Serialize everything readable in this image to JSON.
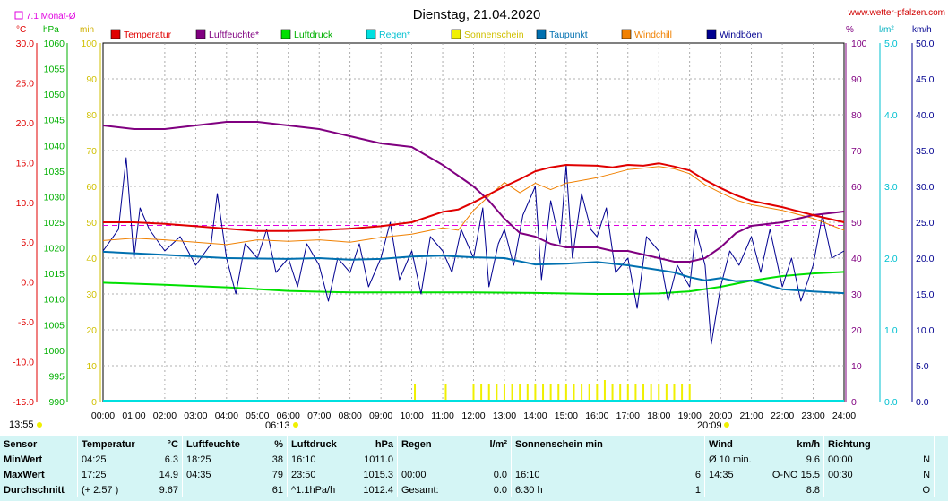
{
  "header": {
    "title": "Dienstag, 21.04.2020",
    "site": "www.wetter-pfalzen.com",
    "avg_label": "7.1 Monat-Ø",
    "unit_left_temp": "°C",
    "unit_left_press": "hPa",
    "unit_left_min": "min",
    "unit_right_pct": "%",
    "unit_right_rain": "l/m²",
    "unit_right_wind": "km/h",
    "sunrise": "06:13",
    "sunset": "20:09",
    "corner_time": "13:55"
  },
  "colors": {
    "temperatur": "#e00000",
    "luftfeuchte": "#800080",
    "luftdruck": "#00e000",
    "regen": "#00e0e0",
    "sonnenschein": "#f0f000",
    "taupunkt": "#0070b0",
    "windchill": "#f08000",
    "windboeen": "#000090",
    "avg_line": "#e000e0"
  },
  "chart_data": {
    "type": "line",
    "title": "Dienstag, 21.04.2020",
    "x_ticks": [
      "00:00",
      "01:00",
      "02:00",
      "03:00",
      "04:00",
      "05:00",
      "06:00",
      "07:00",
      "08:00",
      "09:00",
      "10:00",
      "11:00",
      "12:00",
      "13:00",
      "14:00",
      "15:00",
      "16:00",
      "17:00",
      "18:00",
      "19:00",
      "20:00",
      "21:00",
      "22:00",
      "23:00",
      "24:00"
    ],
    "axes": {
      "temp": {
        "unit": "°C",
        "ylim": [
          -15,
          30
        ],
        "ticks": [
          "30.0",
          "25.0",
          "20.0",
          "15.0",
          "10.0",
          "5.0",
          "0.0",
          "-5.0",
          "-10.0",
          "-15.0"
        ]
      },
      "pressure": {
        "unit": "hPa",
        "ylim": [
          990,
          1060
        ],
        "ticks": [
          "1060",
          "1055",
          "1050",
          "1045",
          "1040",
          "1035",
          "1030",
          "1025",
          "1020",
          "1015",
          "1010",
          "1005",
          "1000",
          "995",
          "990"
        ]
      },
      "sunshine": {
        "unit": "min",
        "ylim": [
          0,
          100
        ],
        "ticks": [
          "100",
          "90",
          "80",
          "70",
          "60",
          "50",
          "40",
          "30",
          "20",
          "10",
          "0"
        ]
      },
      "humidity": {
        "unit": "%",
        "ylim": [
          0,
          100
        ],
        "ticks": [
          "100",
          "90",
          "80",
          "70",
          "60",
          "50",
          "40",
          "30",
          "20",
          "10",
          "0"
        ]
      },
      "rain": {
        "unit": "l/m²",
        "ylim": [
          0,
          5
        ],
        "ticks": [
          "5.0",
          "4.0",
          "3.0",
          "2.0",
          "1.0",
          "0.0"
        ]
      },
      "wind": {
        "unit": "km/h",
        "ylim": [
          0,
          50
        ],
        "ticks": [
          "50.0",
          "45.0",
          "40.0",
          "35.0",
          "30.0",
          "25.0",
          "20.0",
          "15.0",
          "10.0",
          "5.0",
          "0.0"
        ]
      }
    },
    "monthly_avg_temp": 7.1,
    "legend": [
      "Temperatur",
      "Luftfeuchte*",
      "Luftdruck",
      "Regen*",
      "Sonnenschein",
      "Taupunkt",
      "Windchill",
      "Windböen"
    ],
    "series": [
      {
        "name": "Temperatur",
        "axis": "temp",
        "x": [
          0,
          1,
          2,
          3,
          4,
          5,
          6,
          7,
          8,
          9,
          10,
          11,
          11.5,
          12,
          12.5,
          13,
          13.5,
          14,
          14.5,
          15,
          16,
          16.5,
          17,
          17.5,
          18,
          18.5,
          19,
          19.5,
          20,
          20.5,
          21,
          22,
          23,
          24
        ],
        "values": [
          7.5,
          7.5,
          7.3,
          7.0,
          6.7,
          6.4,
          6.4,
          6.5,
          6.7,
          7.0,
          7.5,
          8.8,
          9.1,
          10.0,
          11.0,
          12.0,
          12.9,
          13.9,
          14.4,
          14.7,
          14.6,
          14.4,
          14.7,
          14.6,
          14.9,
          14.5,
          14.0,
          12.8,
          11.8,
          10.9,
          10.2,
          9.4,
          8.4,
          7.5
        ]
      },
      {
        "name": "Luftfeuchte*",
        "axis": "humidity",
        "x": [
          0,
          1,
          2,
          3,
          4,
          5,
          6,
          7,
          8,
          9,
          10,
          11,
          11.5,
          12,
          12.5,
          13,
          13.5,
          14,
          14.5,
          15,
          16,
          16.5,
          17,
          17.5,
          18,
          18.5,
          19,
          19.5,
          20,
          20.5,
          21,
          22,
          23,
          24
        ],
        "values": [
          77,
          76,
          76,
          77,
          78,
          78,
          77,
          76,
          74,
          72,
          71,
          66,
          63,
          60,
          56,
          51,
          47,
          46,
          44,
          43,
          43,
          42,
          42,
          41,
          40,
          39,
          39,
          40,
          43,
          47,
          49,
          50,
          52,
          53
        ]
      },
      {
        "name": "Luftdruck",
        "axis": "pressure",
        "x": [
          0,
          2,
          4,
          6,
          8,
          10,
          12,
          14,
          16,
          17,
          18,
          19,
          20,
          21,
          22,
          23,
          24
        ],
        "values": [
          1013.2,
          1012.8,
          1012.3,
          1011.6,
          1011.3,
          1011.3,
          1011.3,
          1011.2,
          1011.0,
          1011.0,
          1011.1,
          1011.5,
          1012.4,
          1013.6,
          1014.5,
          1015.0,
          1015.3
        ]
      },
      {
        "name": "Taupunkt",
        "axis": "temp",
        "x": [
          0,
          2,
          4,
          6,
          7,
          8,
          9,
          10,
          11,
          12,
          13,
          14,
          15,
          16,
          17,
          18,
          18.5,
          19,
          19.5,
          20,
          20.5,
          21,
          22,
          23,
          24
        ],
        "values": [
          3.8,
          3.4,
          3.0,
          2.9,
          3.0,
          2.8,
          2.9,
          3.2,
          3.3,
          3.1,
          3.0,
          2.2,
          2.3,
          2.5,
          2.1,
          1.5,
          1.2,
          0.6,
          0.2,
          0.5,
          0.1,
          0.2,
          -0.9,
          -1.2,
          -1.4
        ]
      },
      {
        "name": "Windchill",
        "axis": "temp",
        "x": [
          0,
          1,
          2,
          3,
          4,
          5,
          6,
          7,
          8,
          9,
          10,
          11,
          11.5,
          12,
          12.5,
          13,
          13.5,
          14,
          14.5,
          15,
          16,
          16.5,
          17,
          17.5,
          18,
          18.5,
          19,
          19.5,
          20,
          20.5,
          21,
          22,
          23,
          24
        ],
        "values": [
          5.2,
          5.5,
          5.3,
          5.0,
          4.7,
          5.3,
          5.1,
          5.3,
          5.0,
          5.6,
          6.0,
          6.8,
          6.5,
          9.0,
          10.8,
          12.5,
          11.2,
          12.4,
          11.6,
          12.4,
          13.1,
          13.6,
          14.1,
          14.3,
          14.5,
          14.2,
          13.6,
          12.2,
          11.2,
          10.3,
          9.7,
          9.0,
          8.0,
          6.5
        ]
      },
      {
        "name": "Windböen",
        "axis": "wind",
        "x": [
          0,
          0.5,
          0.75,
          1,
          1.2,
          1.5,
          2,
          2.5,
          3,
          3.5,
          3.7,
          4,
          4.3,
          4.6,
          5,
          5.3,
          5.6,
          6,
          6.3,
          6.6,
          7,
          7.3,
          7.6,
          8,
          8.3,
          8.6,
          9,
          9.3,
          9.6,
          10,
          10.3,
          10.6,
          11,
          11.3,
          11.6,
          12,
          12.3,
          12.5,
          12.8,
          13,
          13.3,
          13.6,
          14,
          14.2,
          14.5,
          14.8,
          15,
          15.2,
          15.5,
          15.8,
          16,
          16.3,
          16.6,
          17,
          17.3,
          17.6,
          18,
          18.3,
          18.6,
          19,
          19.2,
          19.5,
          19.7,
          20,
          20.3,
          20.6,
          21,
          21.3,
          21.6,
          22,
          22.3,
          22.6,
          23,
          23.3,
          23.6,
          24
        ],
        "values": [
          21,
          24,
          34,
          20,
          27,
          24,
          21,
          23,
          19,
          22,
          29,
          20,
          15,
          22,
          20,
          24,
          18,
          20,
          16,
          22,
          19,
          14,
          20,
          18,
          22,
          16,
          20,
          25,
          17,
          21,
          15,
          23,
          21,
          18,
          24,
          20,
          27,
          16,
          22,
          24,
          19,
          26,
          30,
          17,
          28,
          22,
          33,
          20,
          29,
          24,
          23,
          27,
          18,
          20,
          13,
          23,
          21,
          14,
          19,
          16,
          24,
          19,
          8,
          16,
          21,
          19,
          23,
          18,
          24,
          16,
          20,
          14,
          19,
          26,
          20,
          21
        ]
      }
    ],
    "bars": [
      {
        "name": "Sonnenschein",
        "axis": "sunshine",
        "x": [
          10.1,
          11.1,
          12.0,
          12.25,
          12.5,
          12.75,
          13.0,
          13.25,
          13.5,
          13.75,
          14.0,
          14.25,
          14.5,
          14.75,
          15.0,
          15.25,
          15.5,
          15.75,
          16.0,
          16.25,
          16.5,
          16.75,
          17.0,
          17.25,
          17.5,
          17.75,
          18.0,
          18.25,
          18.5,
          18.75,
          19.0
        ],
        "values": [
          5,
          5,
          5,
          5,
          5,
          5,
          5,
          5,
          5,
          5,
          5,
          5,
          5,
          5,
          5,
          5,
          5,
          5,
          5,
          6,
          5,
          5,
          5,
          5,
          5,
          5,
          5,
          5,
          5,
          5,
          5
        ]
      },
      {
        "name": "Regen*",
        "axis": "rain",
        "x": [],
        "values": []
      }
    ]
  },
  "stats": {
    "headers": {
      "sensor": "Sensor",
      "temp": "Temperatur",
      "temp_u": "°C",
      "hum": "Luftfeuchte",
      "hum_u": "%",
      "press": "Luftdruck",
      "press_u": "hPa",
      "rain": "Regen",
      "rain_u": "l/m²",
      "sun": "Sonnenschein min",
      "wind": "Wind",
      "wind_u": "km/h",
      "dir": "Richtung"
    },
    "rows": [
      {
        "label": "MinWert",
        "t_time": "04:25",
        "t_val": "6.3",
        "h_time": "18:25",
        "h_val": "38",
        "p_time": "16:10",
        "p_val": "1011.0",
        "r_time": "",
        "r_val": "",
        "s_time": "",
        "s_val": "",
        "w_time": "Ø 10 min.",
        "w_val": "9.6",
        "d_time": "00:00",
        "d_val": "N"
      },
      {
        "label": "MaxWert",
        "t_time": "17:25",
        "t_val": "14.9",
        "h_time": "04:35",
        "h_val": "79",
        "p_time": "23:50",
        "p_val": "1015.3",
        "r_time": "00:00",
        "r_val": "0.0",
        "s_time": "16:10",
        "s_val": "6",
        "w_time": "14:35",
        "w_val": "O-NO 15.5",
        "d_time": "00:30",
        "d_val": "N"
      },
      {
        "label": "Durchschnitt",
        "t_time": "(+ 2.57 )",
        "t_val": "9.67",
        "h_time": "",
        "h_val": "61",
        "p_time": "^1.1hPa/h",
        "p_val": "1012.4",
        "r_time": "Gesamt:",
        "r_val": "0.0",
        "s_time": "6:30 h",
        "s_val": "1",
        "w_time": "",
        "w_val": "8.8",
        "d_time": "",
        "d_val": "O"
      }
    ]
  }
}
